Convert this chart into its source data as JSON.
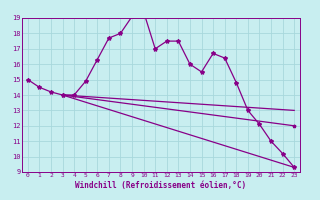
{
  "xlabel": "Windchill (Refroidissement éolien,°C)",
  "background_color": "#c8eef0",
  "grid_color": "#a8d8dc",
  "line_color": "#880088",
  "xlim": [
    -0.5,
    23.5
  ],
  "ylim": [
    9,
    19
  ],
  "xticks": [
    0,
    1,
    2,
    3,
    4,
    5,
    6,
    7,
    8,
    9,
    10,
    11,
    12,
    13,
    14,
    15,
    16,
    17,
    18,
    19,
    20,
    21,
    22,
    23
  ],
  "yticks": [
    9,
    10,
    11,
    12,
    13,
    14,
    15,
    16,
    17,
    18,
    19
  ],
  "series1_x": [
    0,
    1,
    2,
    3,
    4,
    5,
    6,
    7,
    8,
    9,
    10,
    11,
    12,
    13,
    14,
    15,
    16,
    17,
    18,
    19,
    20,
    21,
    22,
    23
  ],
  "series1_y": [
    15.0,
    14.5,
    14.2,
    14.0,
    14.0,
    14.9,
    16.3,
    17.7,
    18.0,
    19.1,
    19.4,
    17.0,
    17.5,
    17.5,
    16.0,
    15.5,
    16.7,
    16.4,
    14.8,
    13.0,
    12.1,
    11.0,
    10.2,
    9.3
  ],
  "series2_x": [
    3,
    23
  ],
  "series2_y": [
    14.0,
    13.0
  ],
  "series3_x": [
    3,
    23
  ],
  "series3_y": [
    14.0,
    12.0
  ],
  "series4_x": [
    3,
    23
  ],
  "series4_y": [
    14.0,
    9.3
  ]
}
